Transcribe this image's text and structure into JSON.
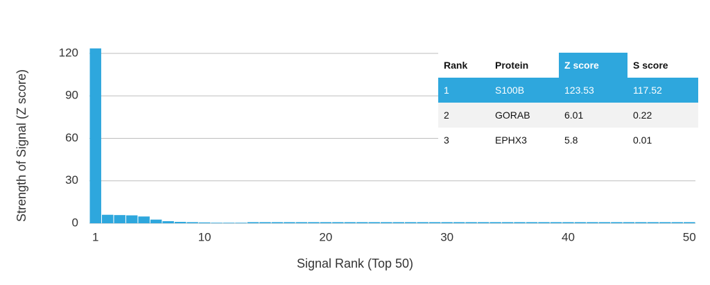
{
  "chart_data": {
    "type": "bar",
    "x_label": "Signal Rank (Top 50)",
    "y_label": "Strength of Signal (Z score)",
    "x": [
      1,
      2,
      3,
      4,
      5,
      6,
      7,
      8,
      9,
      10,
      11,
      12,
      13,
      14,
      15,
      16,
      17,
      18,
      19,
      20,
      21,
      22,
      23,
      24,
      25,
      26,
      27,
      28,
      29,
      30,
      31,
      32,
      33,
      34,
      35,
      36,
      37,
      38,
      39,
      40,
      41,
      42,
      43,
      44,
      45,
      46,
      47,
      48,
      49,
      50
    ],
    "values": [
      123.53,
      6.01,
      5.8,
      5.6,
      4.8,
      2.6,
      1.5,
      1.0,
      0.8,
      0.6,
      0.4,
      0.4,
      0.4,
      0.8,
      0.8,
      0.8,
      0.8,
      0.8,
      0.8,
      0.8,
      0.8,
      0.8,
      0.8,
      0.8,
      0.8,
      0.8,
      0.8,
      0.8,
      0.8,
      0.8,
      0.8,
      0.8,
      0.8,
      0.8,
      0.8,
      0.8,
      0.8,
      0.8,
      0.8,
      0.8,
      0.8,
      0.8,
      0.8,
      0.8,
      0.8,
      0.8,
      0.8,
      0.8,
      0.8,
      0.8
    ],
    "color": "#2ea7dd",
    "xlim": [
      0.5,
      50.5
    ],
    "xticks": [
      1,
      10,
      20,
      30,
      40,
      50
    ],
    "ylim": [
      0,
      120
    ],
    "yticks": [
      0,
      30,
      60,
      90,
      120
    ],
    "grid": true
  },
  "table": {
    "columns": [
      "Rank",
      "Protein",
      "Z score",
      "S score"
    ],
    "rows": [
      [
        "1",
        "S100B",
        "123.53",
        "117.52"
      ],
      [
        "2",
        "GORAB",
        "6.01",
        "0.22"
      ],
      [
        "3",
        "EPHX3",
        "5.8",
        "0.01"
      ]
    ]
  }
}
